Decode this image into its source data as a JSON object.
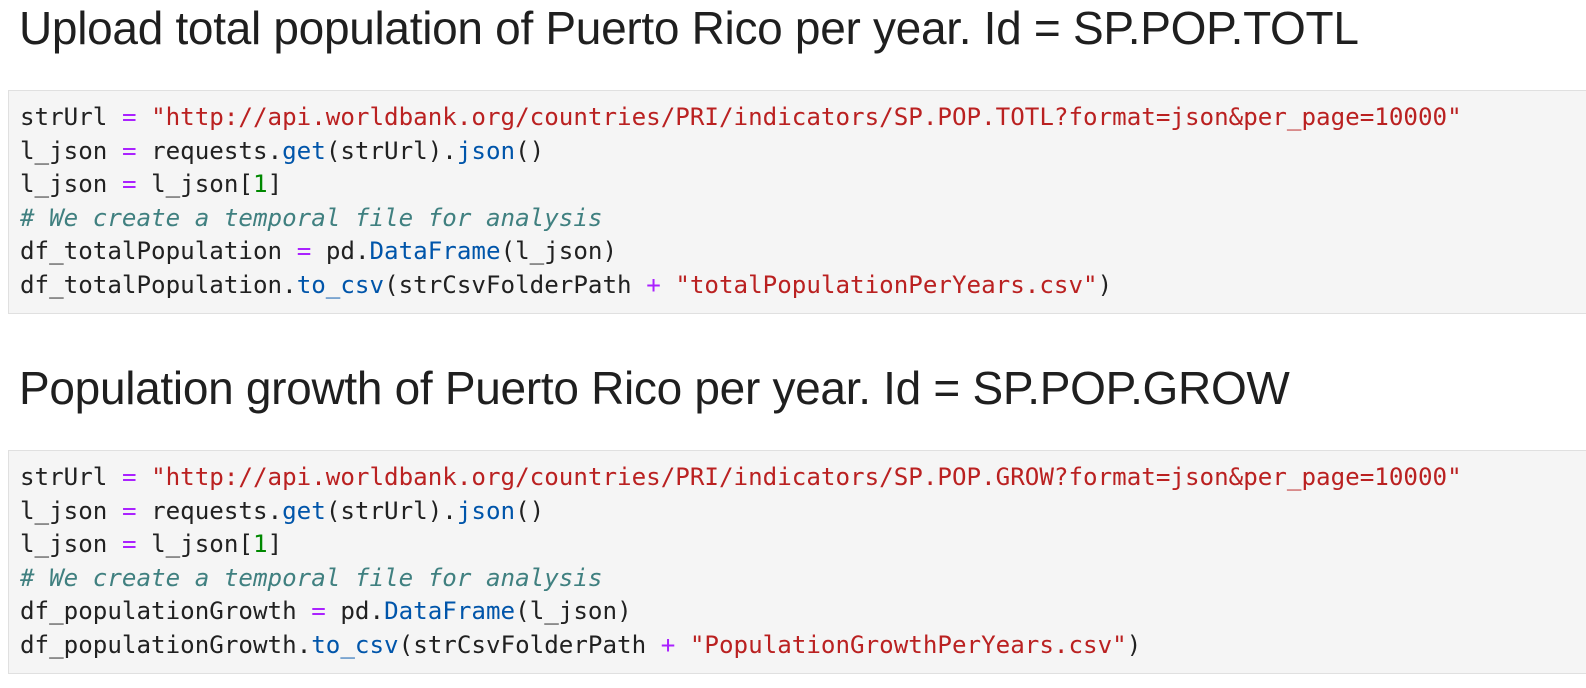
{
  "sections": [
    {
      "heading": "Upload total population of Puerto Rico per year. Id = SP.POP.TOTL",
      "code": {
        "var_url": "strUrl",
        "url_string": "\"http://api.worldbank.org/countries/PRI/indicators/SP.POP.TOTL?format=json&per_page=10000\"",
        "var_json": "l_json",
        "requests_mod": "requests",
        "get_fn": "get",
        "json_fn": "json",
        "index": "1",
        "comment": "# We create a temporal file for analysis",
        "df_var": "df_totalPopulation",
        "pd_mod": "pd",
        "dataframe_fn": "DataFrame",
        "to_csv_fn": "to_csv",
        "folder_var": "strCsvFolderPath",
        "csv_string": "\"totalPopulationPerYears.csv\""
      }
    },
    {
      "heading": "Population growth of Puerto Rico per year. Id = SP.POP.GROW",
      "code": {
        "var_url": "strUrl",
        "url_string": "\"http://api.worldbank.org/countries/PRI/indicators/SP.POP.GROW?format=json&per_page=10000\"",
        "var_json": "l_json",
        "requests_mod": "requests",
        "get_fn": "get",
        "json_fn": "json",
        "index": "1",
        "comment": "# We create a temporal file for analysis",
        "df_var": "df_populationGrowth",
        "pd_mod": "pd",
        "dataframe_fn": "DataFrame",
        "to_csv_fn": "to_csv",
        "folder_var": "strCsvFolderPath",
        "csv_string": "\"PopulationGrowthPerYears.csv\""
      }
    }
  ],
  "colors": {
    "operator": "#aa22ff",
    "string": "#ba2121",
    "function": "#0055aa",
    "number": "#008800",
    "comment": "#408080",
    "cell_background": "#f5f5f5"
  }
}
